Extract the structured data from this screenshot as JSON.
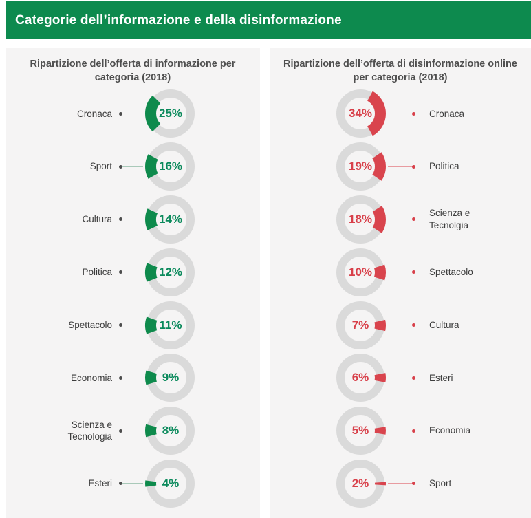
{
  "header": {
    "title": "Categorie dell’informazione e della disinformazione",
    "background": "#0d8a4e",
    "text_color": "#ffffff"
  },
  "colors": {
    "panel_background": "#f5f4f4",
    "ring_gray": "#dadada",
    "info_green_arc": "#0e8a4c",
    "info_green_text": "#0b8a5c",
    "info_line": "#a9c9b9",
    "info_dot": "#4d4d4d",
    "disinfo_red_arc": "#d9444d",
    "disinfo_red_text": "#d8404a",
    "disinfo_line": "#e89ba0",
    "disinfo_dot": "#d8404a"
  },
  "chart_data": [
    {
      "type": "pie",
      "variant": "donut-small-multiples",
      "side": "left",
      "title": "Ripartizione dell’offerta di informazione per categoria (2018)",
      "unit": "%",
      "arc_color": "#0e8a4c",
      "value_color": "#0b8a5c",
      "line_color": "#a9c9b9",
      "dot_color": "#4d4d4d",
      "arc_anchor": "west",
      "categories": [
        "Cronaca",
        "Sport",
        "Cultura",
        "Politica",
        "Spettacolo",
        "Economia",
        "Scienza e\nTecnologia",
        "Esteri"
      ],
      "values": [
        25,
        16,
        14,
        12,
        11,
        9,
        8,
        4
      ],
      "value_labels": [
        "25%",
        "16%",
        "14%",
        "12%",
        "11%",
        "9%",
        "8%",
        "4%"
      ]
    },
    {
      "type": "pie",
      "variant": "donut-small-multiples",
      "side": "right",
      "title": "Ripartizione dell’offerta di disinformazione online per categoria  (2018)",
      "unit": "%",
      "arc_color": "#d9444d",
      "value_color": "#d8404a",
      "line_color": "#e89ba0",
      "dot_color": "#d8404a",
      "arc_anchor": "east",
      "categories": [
        "Cronaca",
        "Politica",
        "Scienza e\nTecnolgia",
        "Spettacolo",
        "Cultura",
        "Esteri",
        "Economia",
        "Sport"
      ],
      "values": [
        34,
        19,
        18,
        10,
        7,
        6,
        5,
        2
      ],
      "value_labels": [
        "34%",
        "19%",
        "18%",
        "10%",
        "7%",
        "6%",
        "5%",
        "2%"
      ]
    }
  ]
}
